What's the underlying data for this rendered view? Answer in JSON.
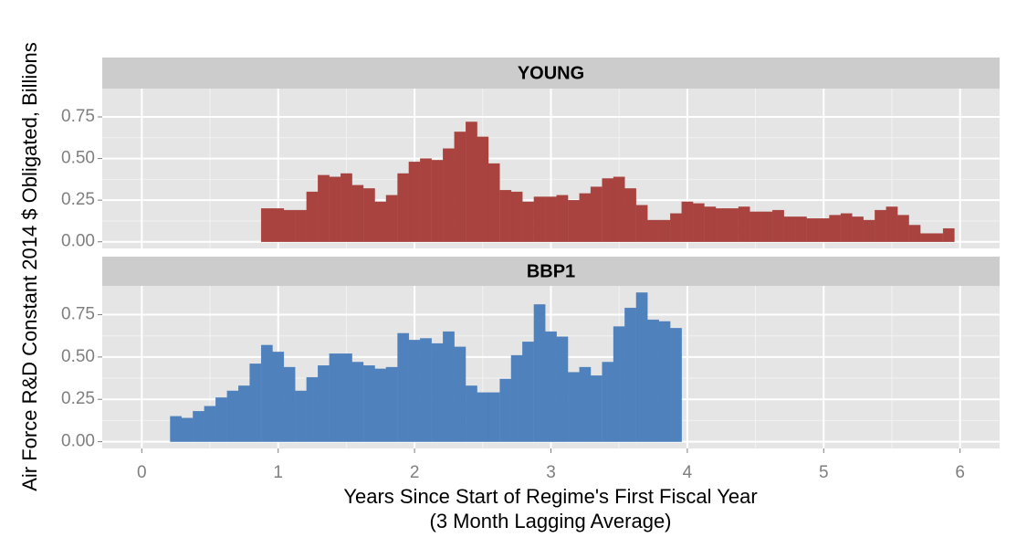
{
  "chart_data": {
    "type": "bar",
    "ylabel": "Air Force R&D Constant 2014 $ Obligated, Billions",
    "xlabel": [
      "Years Since Start of Regime's First Fiscal Year",
      "(3 Month Lagging Average)"
    ],
    "xlim": [
      -0.29,
      6.29
    ],
    "xticks": [
      0,
      1,
      2,
      3,
      4,
      5,
      6
    ],
    "ylim": [
      -0.04,
      0.92
    ],
    "yticks": [
      {
        "value": 0,
        "label": "0.00"
      },
      {
        "value": 0.25,
        "label": "0.25"
      },
      {
        "value": 0.5,
        "label": "0.50"
      },
      {
        "value": 0.75,
        "label": "0.75"
      }
    ],
    "grid": true,
    "facets": [
      {
        "name": "YOUNG",
        "color": "#a8433f",
        "x": [
          0.917,
          1.0,
          1.083,
          1.167,
          1.25,
          1.333,
          1.417,
          1.5,
          1.583,
          1.667,
          1.75,
          1.833,
          1.917,
          2.0,
          2.083,
          2.167,
          2.25,
          2.333,
          2.417,
          2.5,
          2.583,
          2.667,
          2.75,
          2.833,
          2.917,
          3.0,
          3.083,
          3.167,
          3.25,
          3.333,
          3.417,
          3.5,
          3.583,
          3.667,
          3.75,
          3.833,
          3.917,
          4.0,
          4.083,
          4.167,
          4.25,
          4.333,
          4.417,
          4.5,
          4.583,
          4.667,
          4.75,
          4.833,
          4.917,
          5.0,
          5.083,
          5.167,
          5.25,
          5.333,
          5.417,
          5.5,
          5.583,
          5.667,
          5.75,
          5.833,
          5.917
        ],
        "values": [
          0.2,
          0.2,
          0.19,
          0.19,
          0.3,
          0.4,
          0.39,
          0.41,
          0.34,
          0.32,
          0.24,
          0.28,
          0.41,
          0.48,
          0.5,
          0.49,
          0.56,
          0.66,
          0.72,
          0.63,
          0.47,
          0.31,
          0.3,
          0.24,
          0.27,
          0.27,
          0.28,
          0.25,
          0.29,
          0.33,
          0.38,
          0.39,
          0.32,
          0.22,
          0.13,
          0.13,
          0.17,
          0.24,
          0.23,
          0.21,
          0.2,
          0.2,
          0.21,
          0.18,
          0.18,
          0.19,
          0.15,
          0.15,
          0.14,
          0.14,
          0.16,
          0.17,
          0.15,
          0.13,
          0.19,
          0.21,
          0.16,
          0.1,
          0.05,
          0.05,
          0.08
        ]
      },
      {
        "name": "BBP1",
        "color": "#4f81bd",
        "x": [
          0.25,
          0.333,
          0.417,
          0.5,
          0.583,
          0.667,
          0.75,
          0.833,
          0.917,
          1.0,
          1.083,
          1.167,
          1.25,
          1.333,
          1.417,
          1.5,
          1.583,
          1.667,
          1.75,
          1.833,
          1.917,
          2.0,
          2.083,
          2.167,
          2.25,
          2.333,
          2.417,
          2.5,
          2.583,
          2.667,
          2.75,
          2.833,
          2.917,
          3.0,
          3.083,
          3.167,
          3.25,
          3.333,
          3.417,
          3.5,
          3.583,
          3.667,
          3.75,
          3.833,
          3.917
        ],
        "values": [
          0.15,
          0.14,
          0.18,
          0.21,
          0.26,
          0.3,
          0.33,
          0.46,
          0.57,
          0.53,
          0.44,
          0.3,
          0.38,
          0.45,
          0.52,
          0.52,
          0.47,
          0.45,
          0.43,
          0.44,
          0.64,
          0.6,
          0.61,
          0.58,
          0.65,
          0.56,
          0.33,
          0.29,
          0.29,
          0.37,
          0.51,
          0.59,
          0.81,
          0.65,
          0.62,
          0.41,
          0.44,
          0.39,
          0.47,
          0.68,
          0.79,
          0.88,
          0.72,
          0.71,
          0.67
        ]
      }
    ]
  }
}
